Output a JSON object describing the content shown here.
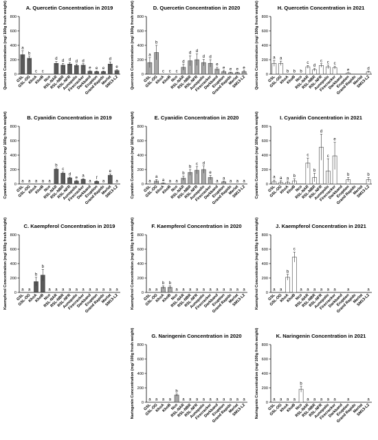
{
  "chart_data": [
    {
      "id": "A",
      "type": "bar",
      "title": "A. Quercetin Concentration in 2019",
      "ylabel": "Quercetin Concentration (mg/ 100g fresh weight)",
      "ylim": [
        0,
        800
      ],
      "yticks": [
        "0",
        "200",
        "400",
        "600",
        "800"
      ],
      "categories": [
        "GSL",
        "GSL-OG",
        "KhoA",
        "KhoB",
        "Nco",
        "RSL-NAR",
        "RSL-NBR",
        "RSL-NFR",
        "Aunopolis",
        "Firecracker",
        "Darkband",
        "Eruption",
        "Grand Rapids",
        "Merlot",
        "SM13-L2"
      ],
      "values": [
        270,
        220,
        0,
        0,
        0,
        150,
        125,
        140,
        120,
        125,
        40,
        35,
        35,
        140,
        50
      ],
      "errors": [
        55,
        30,
        0,
        0,
        0,
        25,
        25,
        20,
        20,
        20,
        8,
        8,
        8,
        30,
        10
      ],
      "letters": [
        "a",
        "b",
        "c",
        "c",
        "",
        "d",
        "d",
        "d",
        "d",
        "d",
        "e",
        "e",
        "e",
        "d",
        "e"
      ],
      "fill": "#595959"
    },
    {
      "id": "D",
      "type": "bar",
      "title": "D. Quercetin Concentration in 2020",
      "ylabel": "Quercetin Concentration (mg/ 100g fresh weight)",
      "ylim": [
        0,
        800
      ],
      "yticks": [
        "0",
        "200",
        "400",
        "600",
        "800"
      ],
      "categories": [
        "GSL",
        "GSL-OG",
        "KhoA",
        "KhoB",
        "Nco",
        "RSL-NAR",
        "RSL-NBR",
        "RSL-NFR",
        "Aunopolis",
        "Firecracker",
        "Darkband",
        "Eruption",
        "Grand Rapids",
        "Merlot",
        "SM13-L2"
      ],
      "values": [
        160,
        300,
        0,
        0,
        0,
        95,
        185,
        200,
        160,
        150,
        70,
        35,
        20,
        20,
        35
      ],
      "errors": [
        70,
        100,
        0,
        0,
        0,
        40,
        70,
        80,
        45,
        50,
        25,
        15,
        8,
        8,
        15
      ],
      "letters": [
        "a",
        "b",
        "c",
        "c",
        "c",
        "d",
        "d",
        "d",
        "d",
        "d",
        "e",
        "e",
        "e",
        "e",
        "e"
      ],
      "fill": "#a6a6a6"
    },
    {
      "id": "H",
      "type": "bar",
      "title": "H. Quercetin Concentration in 2021",
      "ylabel": "Quercetin Concentration (mg/ 100g fresh weight)",
      "ylim": [
        0,
        800
      ],
      "yticks": [
        "0",
        "200",
        "400",
        "600",
        "800"
      ],
      "categories": [
        "GSL",
        "GSL-OG",
        "KhoA",
        "KhoB",
        "Nco",
        "RSL-NAR",
        "RSL-NBR",
        "RSL-NFR",
        "Aunopolis",
        "Firecracker",
        "Darkband",
        "Eruption",
        "Grand Rapids",
        "Merlot",
        "SM13-L2"
      ],
      "values": [
        150,
        150,
        0,
        0,
        0,
        100,
        60,
        120,
        100,
        90,
        0,
        15,
        0,
        0,
        30
      ],
      "errors": [
        40,
        30,
        0,
        0,
        0,
        20,
        20,
        25,
        25,
        20,
        0,
        5,
        0,
        0,
        10
      ],
      "letters": [
        "a",
        "a",
        "b",
        "b",
        "b",
        "c",
        "d",
        "c",
        "c",
        "c",
        "",
        "e",
        "",
        "",
        "d"
      ],
      "fill": "#ffffff"
    },
    {
      "id": "B",
      "type": "bar",
      "title": "B. Cyanidin Concentration in 2019",
      "ylabel": "Cyanidin Concentration (mg/ 100g fresh weight)",
      "ylim": [
        0,
        800
      ],
      "yticks": [
        "0",
        "200",
        "400",
        "600",
        "800"
      ],
      "categories": [
        "GSL",
        "GSL-OG",
        "KhoA",
        "KhoB",
        "Nco",
        "RSL-NAR",
        "RSL-NBR",
        "RSL-NFR",
        "Aunopolis",
        "Firecracker",
        "Darkband",
        "Eruption",
        "Grand Rapids",
        "Merlot",
        "SM13-L2"
      ],
      "values": [
        0,
        0,
        0,
        0,
        0,
        205,
        150,
        85,
        40,
        65,
        0,
        35,
        0,
        120,
        0
      ],
      "errors": [
        0,
        0,
        0,
        0,
        0,
        15,
        15,
        10,
        8,
        10,
        0,
        8,
        0,
        20,
        0
      ],
      "letters": [
        "a",
        "a",
        "a",
        "a",
        "a",
        "b",
        "c",
        "d",
        "e",
        "a",
        "a",
        "f",
        "a",
        "e",
        "a"
      ],
      "fill": "#595959"
    },
    {
      "id": "E",
      "type": "bar",
      "title": "E. Cyanidin Concentration in 2020",
      "ylabel": "Cyanidin Concentration (mg/ 100g fresh weight)",
      "ylim": [
        0,
        800
      ],
      "yticks": [
        "0",
        "200",
        "400",
        "600",
        "800"
      ],
      "categories": [
        "GSL",
        "GSL-OG",
        "KhoA",
        "KhoB",
        "Nco",
        "RSL-NAR",
        "RSL-NBR",
        "RSL-NFR",
        "Aunopolis",
        "Firecracker",
        "Darkband",
        "Eruption",
        "Grand Rapids",
        "Merlot",
        "SM13-L2"
      ],
      "values": [
        0,
        40,
        10,
        0,
        0,
        80,
        160,
        190,
        200,
        90,
        0,
        30,
        0,
        0,
        0
      ],
      "errors": [
        0,
        20,
        5,
        0,
        0,
        30,
        40,
        50,
        50,
        30,
        0,
        10,
        0,
        0,
        0
      ],
      "letters": [
        "a",
        "a",
        "a",
        "a",
        "a",
        "b",
        "b",
        "c",
        "d",
        "e",
        "a",
        "a",
        "a",
        "a",
        "a"
      ],
      "fill": "#a6a6a6"
    },
    {
      "id": "I",
      "type": "bar",
      "title": "I. Cyanidin Concentration in 2021",
      "ylabel": "Cyanidin Concentration (mg/ 100g fresh weight)",
      "ylim": [
        0,
        800
      ],
      "yticks": [
        "0",
        "200",
        "400",
        "600",
        "800"
      ],
      "categories": [
        "GSL",
        "GSL-OG",
        "KhoA",
        "KhoB",
        "Nco",
        "RSL-NAR",
        "RSL-NBR",
        "RSL-NFR",
        "Aunopolis",
        "Firecracker",
        "Darkband",
        "Eruption",
        "Grand Rapids",
        "Merlot",
        "SM13-L2"
      ],
      "values": [
        30,
        20,
        20,
        40,
        0,
        290,
        90,
        510,
        180,
        390,
        0,
        60,
        0,
        0,
        60
      ],
      "errors": [
        25,
        25,
        20,
        30,
        0,
        70,
        60,
        180,
        170,
        190,
        0,
        30,
        0,
        0,
        30
      ],
      "letters": [
        "a",
        "a",
        "a",
        "b",
        "",
        "c",
        "b",
        "d",
        "c",
        "e",
        "",
        "b",
        "",
        "",
        "b"
      ],
      "fill": "#ffffff"
    },
    {
      "id": "C",
      "type": "bar",
      "title": "C. Kaempferol Concentration in 2019",
      "ylabel": "Kaempferol Concentration (mg/ 100g fresh weight)",
      "ylim": [
        0,
        800
      ],
      "yticks": [
        "0",
        "200",
        "400",
        "600",
        "800"
      ],
      "categories": [
        "GSL",
        "GSL-OG",
        "KhoA",
        "KhoB",
        "Nco",
        "RSL-NAR",
        "RSL-NBR",
        "RSL-NFR",
        "Aunopolis",
        "Firecracker",
        "Darkband",
        "Eruption",
        "Grand Rapids",
        "Merlot",
        "SM13-L2"
      ],
      "values": [
        0,
        0,
        150,
        240,
        0,
        0,
        0,
        0,
        0,
        0,
        0,
        0,
        0,
        0,
        0
      ],
      "errors": [
        0,
        0,
        60,
        80,
        0,
        0,
        0,
        0,
        0,
        0,
        0,
        0,
        0,
        0,
        0
      ],
      "letters": [
        "a",
        "a",
        "b",
        "b",
        "a",
        "a",
        "a",
        "a",
        "a",
        "a",
        "a",
        "a",
        "a",
        "a",
        "a"
      ],
      "fill": "#595959"
    },
    {
      "id": "F",
      "type": "bar",
      "title": "F. Kaempferol Concentration in 2020",
      "ylabel": "Kaempferol Concentration (mg/ 100g fresh weight)",
      "ylim": [
        0,
        800
      ],
      "yticks": [
        "0",
        "200",
        "400",
        "600",
        "800"
      ],
      "categories": [
        "GSL",
        "GSL-OG",
        "KhoA",
        "KhoB",
        "Nco",
        "RSL-NAR",
        "RSL-NBR",
        "RSL-NFR",
        "Aunopolis",
        "Firecracker",
        "Darkband",
        "Eruption",
        "Grand Rapids",
        "Merlot",
        "SM13-L2"
      ],
      "values": [
        0,
        0,
        70,
        70,
        0,
        0,
        0,
        0,
        0,
        0,
        0,
        0,
        0,
        0,
        0
      ],
      "errors": [
        0,
        0,
        20,
        20,
        0,
        0,
        0,
        0,
        0,
        0,
        0,
        0,
        0,
        0,
        0
      ],
      "letters": [
        "a",
        "a",
        "b",
        "b",
        "a",
        "a",
        "a",
        "a",
        "a",
        "a",
        "a",
        "a",
        "a",
        "a",
        "a"
      ],
      "fill": "#a6a6a6"
    },
    {
      "id": "J",
      "type": "bar",
      "title": "J. Kaempferol Concentration in 2021",
      "ylabel": "Kaempferol Concentration (mg/ 100g fresh weight)",
      "ylim": [
        0,
        800
      ],
      "yticks": [
        "0",
        "200",
        "400",
        "600",
        "800"
      ],
      "categories": [
        "GSL",
        "GSL-OG",
        "KhoA",
        "KhoB",
        "Nco",
        "RSL-NAR",
        "RSL-NBR",
        "RSL-NFR",
        "Aunopolis",
        "Firecracker",
        "Darkband",
        "Eruption",
        "Grand Rapids",
        "Merlot",
        "SM13-L2"
      ],
      "values": [
        0,
        0,
        210,
        490,
        0,
        0,
        0,
        0,
        0,
        0,
        0,
        0,
        0,
        0,
        0
      ],
      "errors": [
        0,
        0,
        40,
        70,
        0,
        0,
        0,
        0,
        0,
        0,
        0,
        0,
        0,
        0,
        0
      ],
      "letters": [
        "a",
        "a",
        "b",
        "c",
        "a",
        "a",
        "a",
        "a",
        "a",
        "a",
        "",
        "a",
        "",
        "",
        "a"
      ],
      "fill": "#ffffff"
    },
    {
      "id": "G",
      "type": "bar",
      "title": "G. Naringenin Concentration in 2020",
      "ylabel": "Naringenin Concentration (mg/ 100g fresh weight)",
      "ylim": [
        0,
        800
      ],
      "yticks": [
        "0",
        "200",
        "400",
        "600",
        "800"
      ],
      "categories": [
        "GSL",
        "GSL-OG",
        "KhoA",
        "KhoB",
        "Nco",
        "RSL-NAR",
        "RSL-NBR",
        "RSL-NFR",
        "Aunopolis",
        "Firecracker",
        "Darkband",
        "Eruption",
        "Grand Rapids",
        "Merlot",
        "SM13-L2"
      ],
      "values": [
        0,
        0,
        0,
        0,
        100,
        0,
        0,
        0,
        0,
        0,
        0,
        0,
        0,
        0,
        0
      ],
      "errors": [
        0,
        0,
        0,
        0,
        15,
        0,
        0,
        0,
        0,
        0,
        0,
        0,
        0,
        0,
        0
      ],
      "letters": [
        "a",
        "a",
        "a",
        "a",
        "b",
        "a",
        "a",
        "a",
        "a",
        "a",
        "a",
        "a",
        "a",
        "a",
        "a"
      ],
      "fill": "#a6a6a6"
    },
    {
      "id": "K",
      "type": "bar",
      "title": "K. Naringenin Concentration in 2021",
      "ylabel": "Naringenin Concentration (mg/ 100g fresh weight)",
      "ylim": [
        0,
        800
      ],
      "yticks": [
        "0",
        "200",
        "400",
        "600",
        "800"
      ],
      "categories": [
        "GSL",
        "GSL-OG",
        "KhoA",
        "KhoB",
        "Nco",
        "RSL-NAR",
        "RSL-NBR",
        "RSL-NFR",
        "Aunopolis",
        "Firecracker",
        "Darkband",
        "Eruption",
        "Grand Rapids",
        "Merlot",
        "SM13-L2"
      ],
      "values": [
        0,
        0,
        0,
        0,
        180,
        0,
        0,
        0,
        0,
        0,
        0,
        0,
        0,
        0,
        0
      ],
      "errors": [
        0,
        0,
        0,
        0,
        40,
        0,
        0,
        0,
        0,
        0,
        0,
        0,
        0,
        0,
        0
      ],
      "letters": [
        "a",
        "a",
        "a",
        "a",
        "b",
        "a",
        "a",
        "a",
        "a",
        "a",
        "",
        "a",
        "",
        "",
        "a"
      ],
      "fill": "#ffffff"
    }
  ]
}
